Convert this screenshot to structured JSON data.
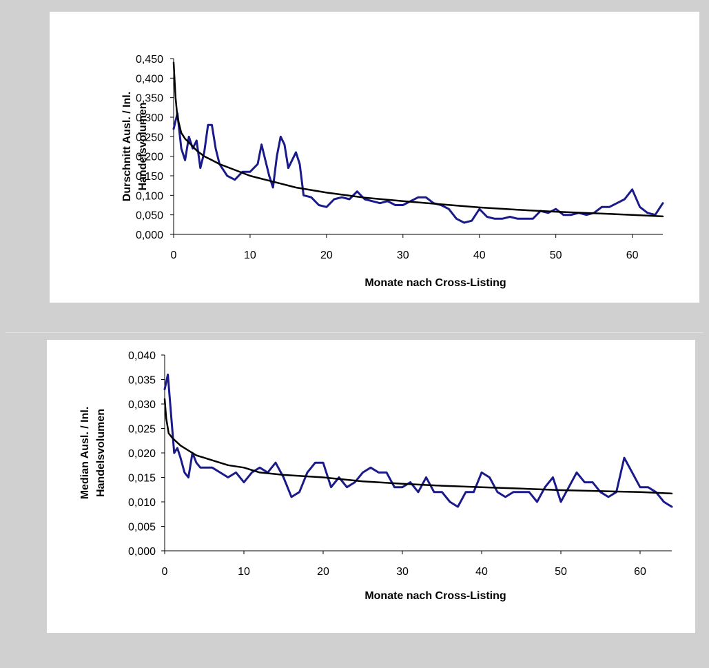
{
  "colors": {
    "background": "#d0d0d0",
    "panel": "#ffffff",
    "actual": "#1a1a8a",
    "trend": "#000000"
  },
  "chart_data": [
    {
      "type": "line",
      "xlabel": "Monate nach Cross-Listing",
      "ylabel_line1": "Durschnitt Ausl. / Inl.",
      "ylabel_line2": "Handelsvolumen",
      "xlim": [
        0,
        64
      ],
      "ylim": [
        0,
        0.45
      ],
      "x_ticks": [
        "0",
        "10",
        "20",
        "30",
        "40",
        "50",
        "60"
      ],
      "y_ticks": [
        "0,000",
        "0,050",
        "0,100",
        "0,150",
        "0,200",
        "0,250",
        "0,300",
        "0,350",
        "0,400",
        "0,450"
      ],
      "grid": false,
      "series": [
        {
          "x": [
            0,
            0.5,
            1,
            1.5,
            2,
            2.5,
            3,
            3.5,
            4,
            4.5,
            5,
            5.5,
            6,
            7,
            8,
            9,
            10,
            11,
            11.5,
            12,
            12.5,
            13,
            13.5,
            14,
            14.5,
            15,
            15.5,
            16,
            16.5,
            17,
            18,
            19,
            20,
            21,
            22,
            23,
            24,
            25,
            26,
            27,
            28,
            29,
            30,
            31,
            32,
            33,
            34,
            35,
            36,
            37,
            38,
            39,
            40,
            41,
            42,
            43,
            44,
            45,
            46,
            47,
            48,
            49,
            50,
            51,
            52,
            53,
            54,
            55,
            56,
            57,
            58,
            59,
            60,
            61,
            62,
            63,
            64
          ],
          "values": [
            0.27,
            0.31,
            0.22,
            0.19,
            0.25,
            0.22,
            0.24,
            0.17,
            0.21,
            0.28,
            0.28,
            0.22,
            0.18,
            0.15,
            0.14,
            0.16,
            0.16,
            0.18,
            0.23,
            0.19,
            0.15,
            0.12,
            0.2,
            0.25,
            0.23,
            0.17,
            0.19,
            0.21,
            0.18,
            0.1,
            0.095,
            0.075,
            0.07,
            0.09,
            0.095,
            0.09,
            0.11,
            0.09,
            0.085,
            0.08,
            0.085,
            0.075,
            0.075,
            0.085,
            0.095,
            0.095,
            0.08,
            0.075,
            0.065,
            0.04,
            0.03,
            0.035,
            0.065,
            0.045,
            0.04,
            0.04,
            0.045,
            0.04,
            0.04,
            0.04,
            0.06,
            0.055,
            0.065,
            0.05,
            0.05,
            0.055,
            0.05,
            0.055,
            0.07,
            0.07,
            0.08,
            0.09,
            0.115,
            0.07,
            0.055,
            0.05,
            0.08
          ]
        },
        {
          "x": [
            0,
            0.25,
            0.5,
            1,
            1.5,
            2,
            3,
            4,
            5,
            6,
            8,
            10,
            12,
            14,
            16,
            20,
            25,
            30,
            35,
            40,
            45,
            50,
            55,
            60,
            64
          ],
          "values": [
            0.44,
            0.35,
            0.3,
            0.26,
            0.245,
            0.235,
            0.215,
            0.2,
            0.19,
            0.18,
            0.165,
            0.15,
            0.14,
            0.13,
            0.12,
            0.107,
            0.094,
            0.085,
            0.077,
            0.069,
            0.063,
            0.058,
            0.054,
            0.05,
            0.046
          ]
        }
      ]
    },
    {
      "type": "line",
      "xlabel": "Monate nach Cross-Listing",
      "ylabel_line1": "Median Ausl. / Inl.",
      "ylabel_line2": "Handelsvolumen",
      "xlim": [
        0,
        64
      ],
      "ylim": [
        0,
        0.04
      ],
      "x_ticks": [
        "0",
        "10",
        "20",
        "30",
        "40",
        "50",
        "60"
      ],
      "y_ticks": [
        "0,000",
        "0,005",
        "0,010",
        "0,015",
        "0,020",
        "0,025",
        "0,030",
        "0,035",
        "0,040"
      ],
      "grid": false,
      "series": [
        {
          "x": [
            0,
            0.4,
            0.8,
            1.2,
            1.6,
            2,
            2.5,
            3,
            3.5,
            4,
            4.5,
            5,
            6,
            7,
            8,
            9,
            10,
            11,
            12,
            13,
            14,
            15,
            16,
            17,
            18,
            19,
            20,
            21,
            22,
            23,
            24,
            25,
            26,
            27,
            28,
            29,
            30,
            31,
            32,
            33,
            34,
            35,
            36,
            37,
            38,
            39,
            40,
            41,
            42,
            43,
            44,
            45,
            46,
            47,
            48,
            49,
            50,
            51,
            52,
            53,
            54,
            55,
            56,
            57,
            58,
            59,
            60,
            61,
            62,
            63,
            64
          ],
          "values": [
            0.033,
            0.036,
            0.028,
            0.02,
            0.021,
            0.019,
            0.016,
            0.015,
            0.02,
            0.018,
            0.017,
            0.017,
            0.017,
            0.016,
            0.015,
            0.016,
            0.014,
            0.016,
            0.017,
            0.016,
            0.018,
            0.015,
            0.011,
            0.012,
            0.016,
            0.018,
            0.018,
            0.013,
            0.015,
            0.013,
            0.014,
            0.016,
            0.017,
            0.016,
            0.016,
            0.013,
            0.013,
            0.014,
            0.012,
            0.015,
            0.012,
            0.012,
            0.01,
            0.009,
            0.012,
            0.012,
            0.016,
            0.015,
            0.012,
            0.011,
            0.012,
            0.012,
            0.012,
            0.01,
            0.013,
            0.015,
            0.01,
            0.013,
            0.016,
            0.014,
            0.014,
            0.012,
            0.011,
            0.012,
            0.019,
            0.016,
            0.013,
            0.013,
            0.012,
            0.01,
            0.009
          ]
        },
        {
          "x": [
            0,
            0.2,
            0.5,
            1,
            2,
            3,
            4,
            5,
            6,
            8,
            10,
            12,
            15,
            20,
            25,
            30,
            35,
            40,
            45,
            50,
            55,
            60,
            64
          ],
          "values": [
            0.031,
            0.027,
            0.024,
            0.023,
            0.0215,
            0.0205,
            0.0195,
            0.019,
            0.0185,
            0.0175,
            0.017,
            0.016,
            0.0155,
            0.015,
            0.0142,
            0.0137,
            0.0133,
            0.013,
            0.0127,
            0.0124,
            0.0122,
            0.012,
            0.0117
          ]
        }
      ]
    }
  ]
}
